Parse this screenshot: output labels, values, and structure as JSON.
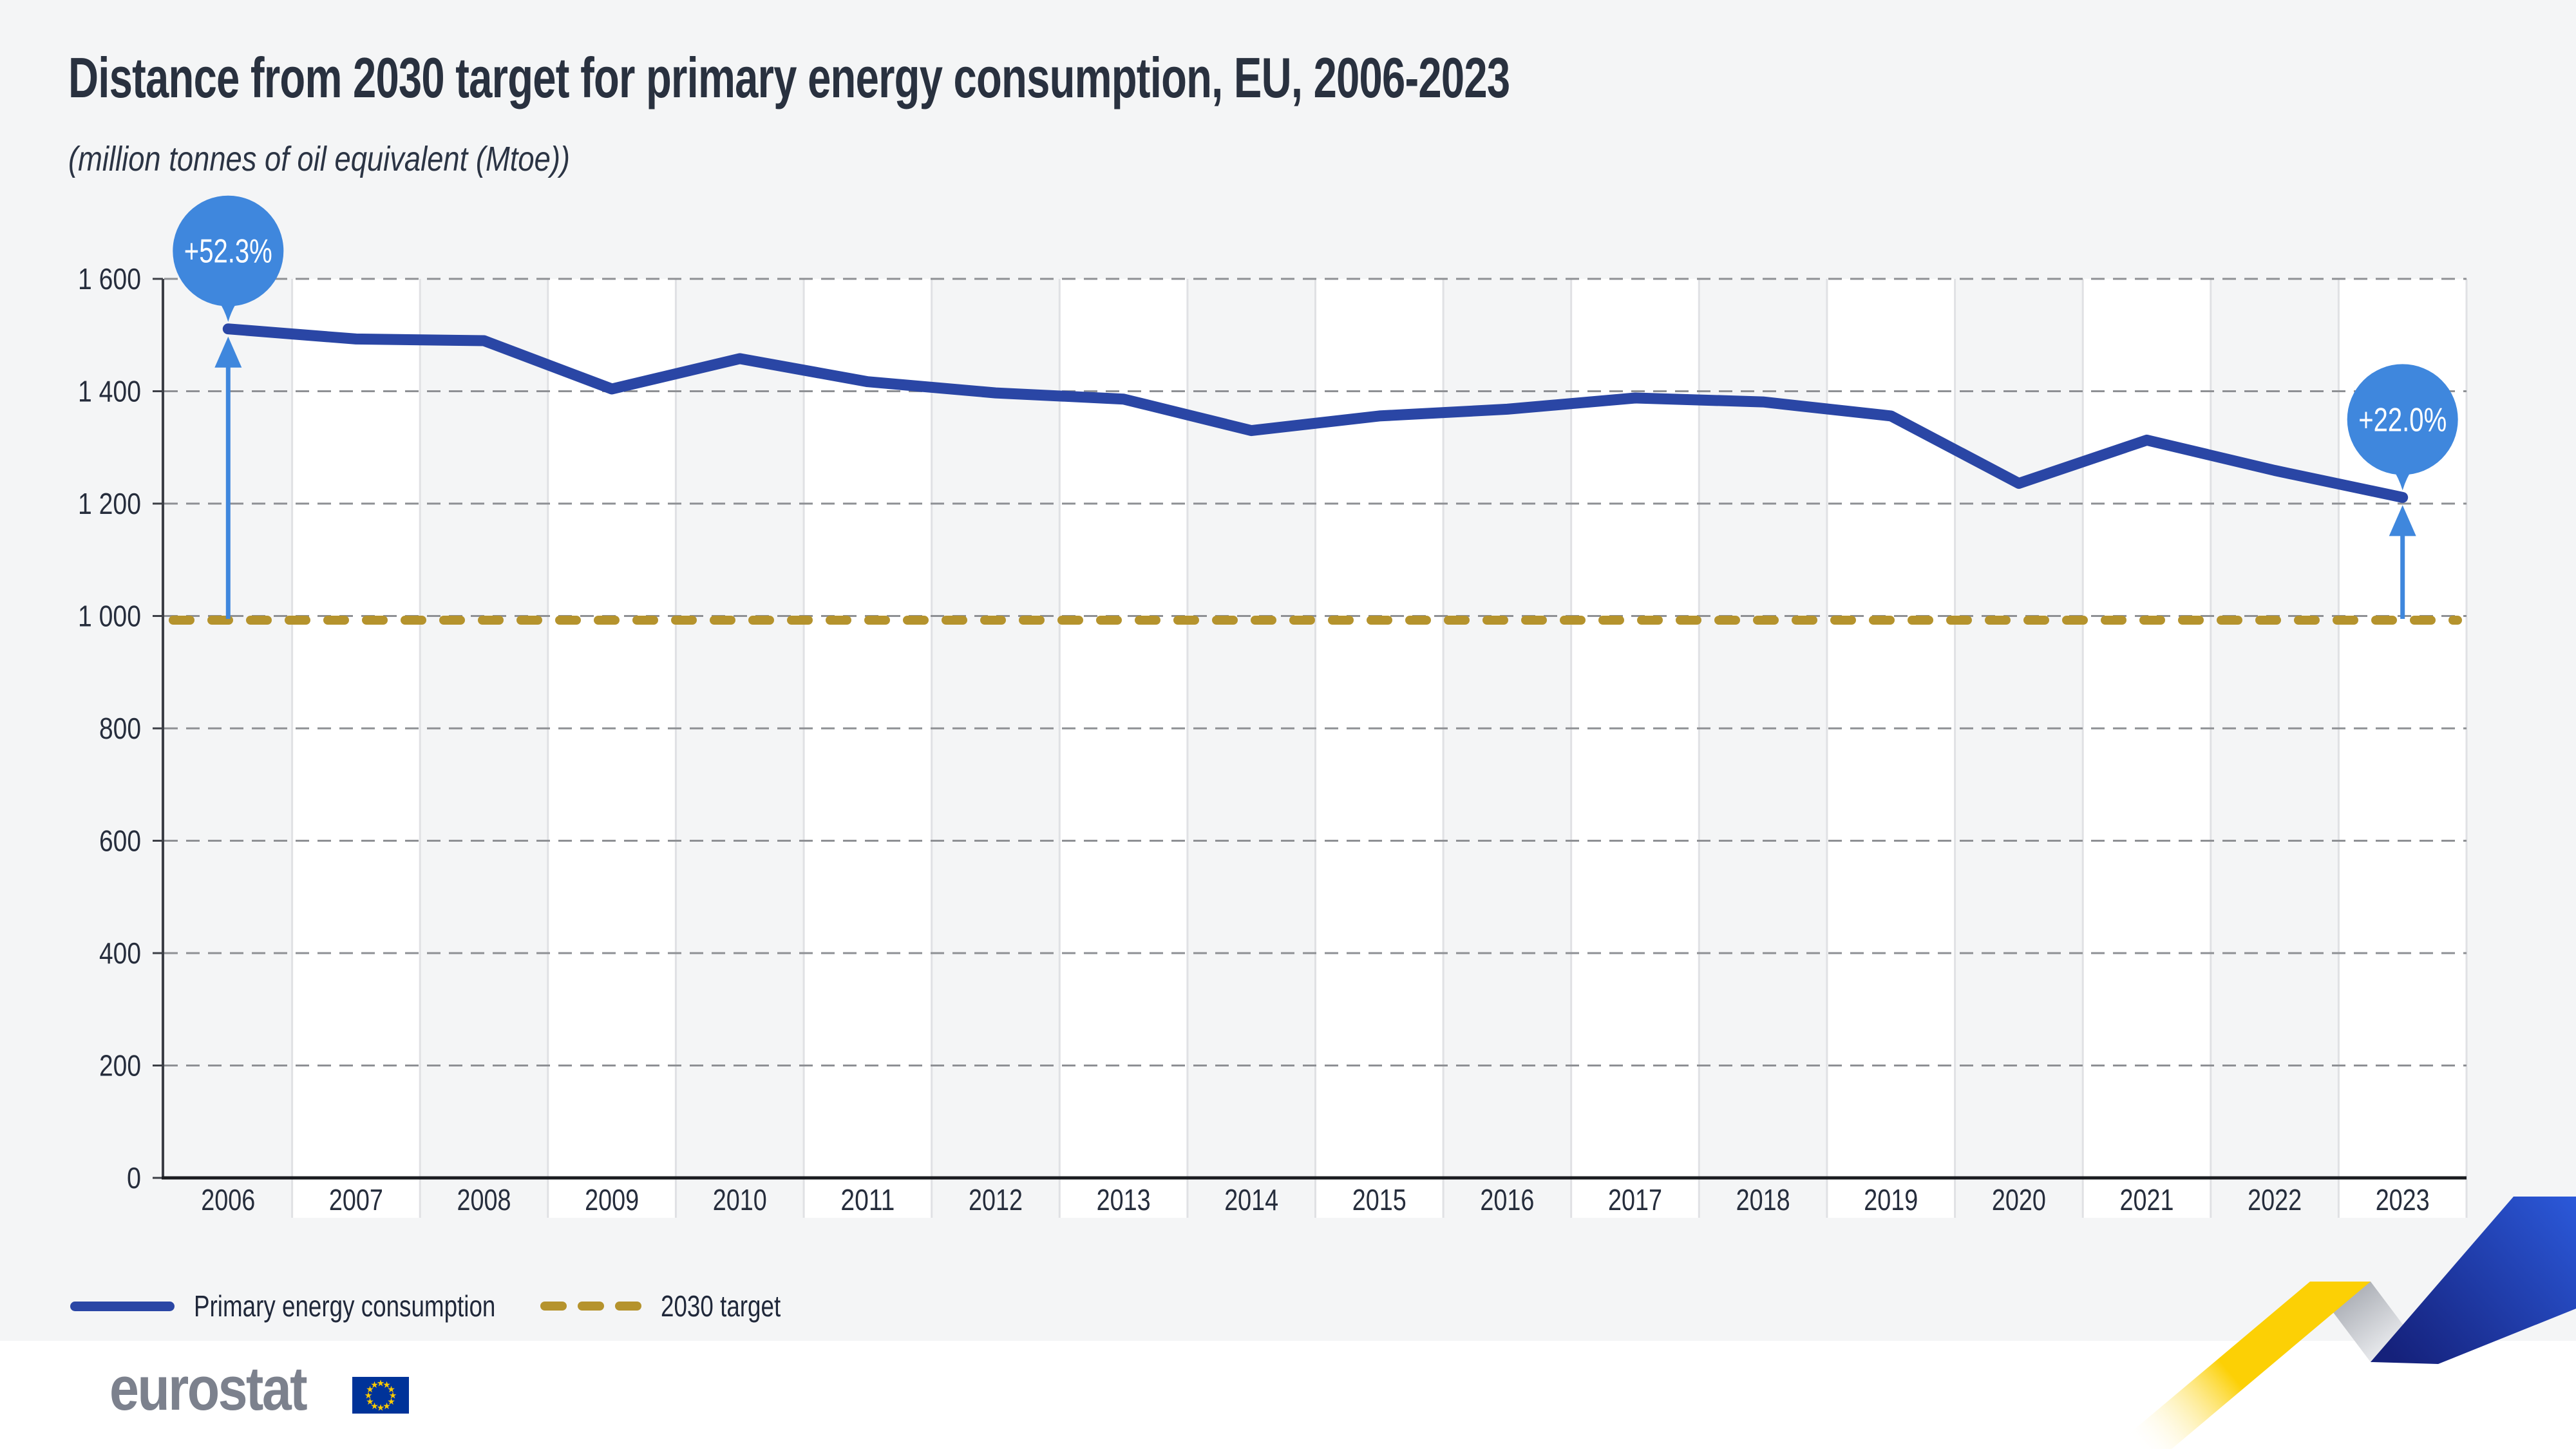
{
  "header": {
    "title": "Distance from 2030 target for primary energy consumption, EU, 2006-2023",
    "subtitle": "(million tonnes of oil equivalent (Mtoe))"
  },
  "legend": {
    "items": [
      {
        "label": "Primary energy consumption",
        "style": "solid-line",
        "color": "#2a46a5"
      },
      {
        "label": "2030 target",
        "style": "dashed-line",
        "color": "#b5932d"
      }
    ]
  },
  "footer": {
    "logo_text": "eurostat"
  },
  "colors": {
    "background": "#f4f5f6",
    "band_white": "#ffffff",
    "band_gray": "#f4f5f6",
    "separator": "#e0e1e4",
    "grid": "#8e9094",
    "axis": "#3c3f46",
    "axis_dark": "#1a1c20",
    "text": "#262d3c",
    "accent_blue": "#3f87dd",
    "line_blue": "#2a46a5",
    "target_gold": "#b5932d",
    "logo_gray": "#7c818d",
    "flag_blue": "#003399",
    "flag_star": "#ffcc00"
  },
  "chart_data": {
    "type": "line",
    "title": "Distance from 2030 target for primary energy consumption, EU, 2006-2023",
    "unit": "million tonnes of oil equivalent (Mtoe)",
    "categories": [
      "2006",
      "2007",
      "2008",
      "2009",
      "2010",
      "2011",
      "2012",
      "2013",
      "2014",
      "2015",
      "2016",
      "2017",
      "2018",
      "2019",
      "2020",
      "2021",
      "2022",
      "2023"
    ],
    "series": [
      {
        "name": "Primary energy consumption",
        "color": "#2a46a5",
        "values": [
          1511,
          1493,
          1490,
          1404,
          1458,
          1417,
          1397,
          1386,
          1330,
          1356,
          1368,
          1388,
          1381,
          1356,
          1236,
          1313,
          1259,
          1211
        ]
      },
      {
        "name": "2030 target",
        "color": "#b5932d",
        "style": "dashed",
        "constant_value": 992.5
      }
    ],
    "ylim": [
      0,
      1600
    ],
    "yticks": [
      0,
      200,
      400,
      600,
      800,
      1000,
      1200,
      1400,
      1600
    ],
    "ytick_labels": [
      "0",
      "200",
      "400",
      "600",
      "800",
      "1 000",
      "1 200",
      "1 400",
      "1 600"
    ],
    "annotations": [
      {
        "category": "2006",
        "label": "+52.3%"
      },
      {
        "category": "2023",
        "label": "+22.0%"
      }
    ],
    "grid": "dashed-horizontal",
    "band_alternation": true,
    "legend_position": "bottom-left"
  }
}
